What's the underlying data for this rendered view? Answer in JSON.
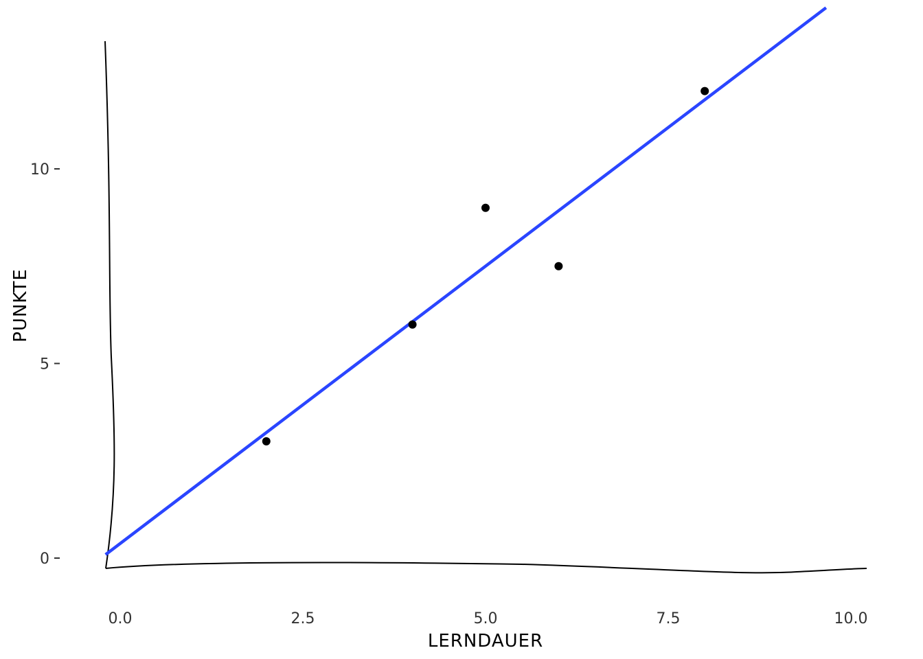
{
  "chart_data": {
    "type": "scatter",
    "xlabel": "LERNDAUER",
    "ylabel": "PUNKTE",
    "xlim": [
      -0.2,
      10.2
    ],
    "ylim": [
      -0.25,
      14.3
    ],
    "x_ticks": [
      "0.0",
      "2.5",
      "5.0",
      "7.5",
      "10.0"
    ],
    "x_tick_values": [
      0,
      2.5,
      5,
      7.5,
      10
    ],
    "y_ticks": [
      "0",
      "5",
      "10"
    ],
    "y_tick_values": [
      0,
      5,
      10
    ],
    "grid": false,
    "points": [
      {
        "x": 2,
        "y": 3
      },
      {
        "x": 4,
        "y": 6
      },
      {
        "x": 5,
        "y": 9
      },
      {
        "x": 6,
        "y": 7.5
      },
      {
        "x": 8,
        "y": 12
      }
    ],
    "fit_line": {
      "intercept": 0.375,
      "slope": 1.425,
      "x_range": [
        -0.2,
        9.66
      ]
    },
    "colors": {
      "points": "#000000",
      "fit_line": "#2a45ff",
      "axes": "#000000"
    },
    "style": "xkcd hand-drawn"
  }
}
